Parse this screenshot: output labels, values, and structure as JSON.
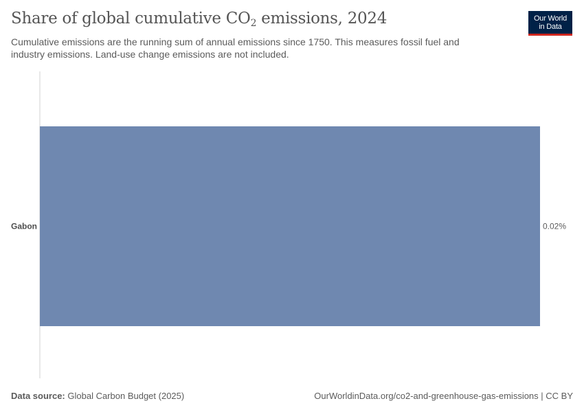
{
  "header": {
    "title_main": "Share of global cumulative CO",
    "title_sub": "2",
    "title_end": " emissions, 2024",
    "subtitle": "Cumulative emissions are the running sum of annual emissions since 1750. This measures fossil fuel and industry emissions. Land-use change emissions are not included."
  },
  "logo": {
    "line1": "Our World",
    "line2": "in Data"
  },
  "footer": {
    "source_label": "Data source:",
    "source_text": "Global Carbon Budget (2025)",
    "url": "OurWorldinData.org/co2-and-greenhouse-gas-emissions | CC BY"
  },
  "chart_data": {
    "type": "bar",
    "orientation": "horizontal",
    "categories": [
      "Gabon"
    ],
    "values": [
      0.02
    ],
    "value_labels": [
      "0.02%"
    ],
    "unit": "%",
    "xlim": [
      0,
      0.02
    ],
    "bar_color": "#6f88b0",
    "grid": false,
    "legend": "none"
  }
}
